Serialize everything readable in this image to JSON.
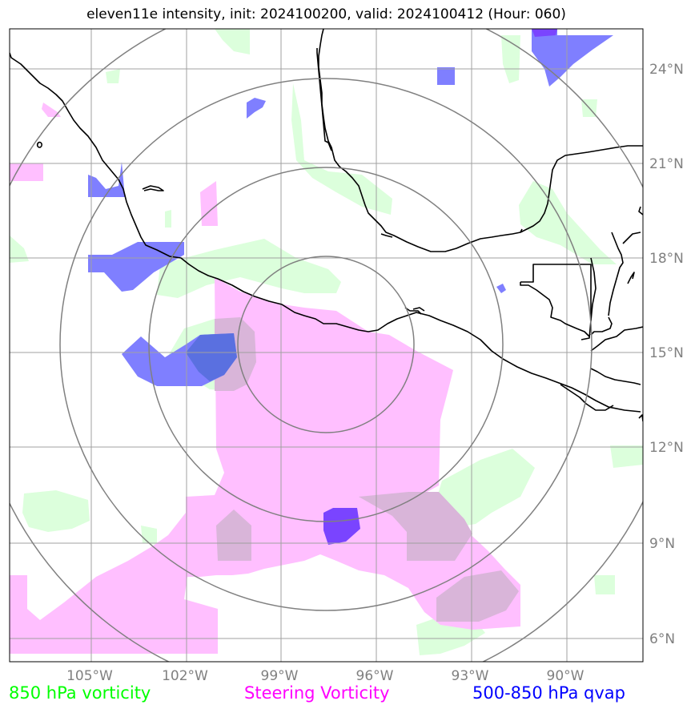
{
  "title": "eleven11e intensity, init: 2024100200, valid: 2024100412 (Hour: 060)",
  "lat_labels": [
    "24°N",
    "21°N",
    "18°N",
    "15°N",
    "12°N",
    "9°N",
    "6°N"
  ],
  "lon_labels": [
    "105°W",
    "102°W",
    "99°W",
    "96°W",
    "93°W",
    "90°W"
  ],
  "legend": [
    {
      "label": "850 hPa vorticity",
      "color": "#00ff00"
    },
    {
      "label": "Steering Vorticity",
      "color": "#ff00ff"
    },
    {
      "label": "500-850 hPa qvap",
      "color": "#0000ff"
    }
  ],
  "colors": {
    "vort_fill": "#dcffdc",
    "steer_fill": "#ffbfff",
    "qvap_fill": "#7f7fff",
    "qvap_dark": "#7a44ff",
    "overlap_fill": "#d9b5d9",
    "grid": "#a0a0a0",
    "range_ring": "#808080",
    "coast": "#000000"
  }
}
